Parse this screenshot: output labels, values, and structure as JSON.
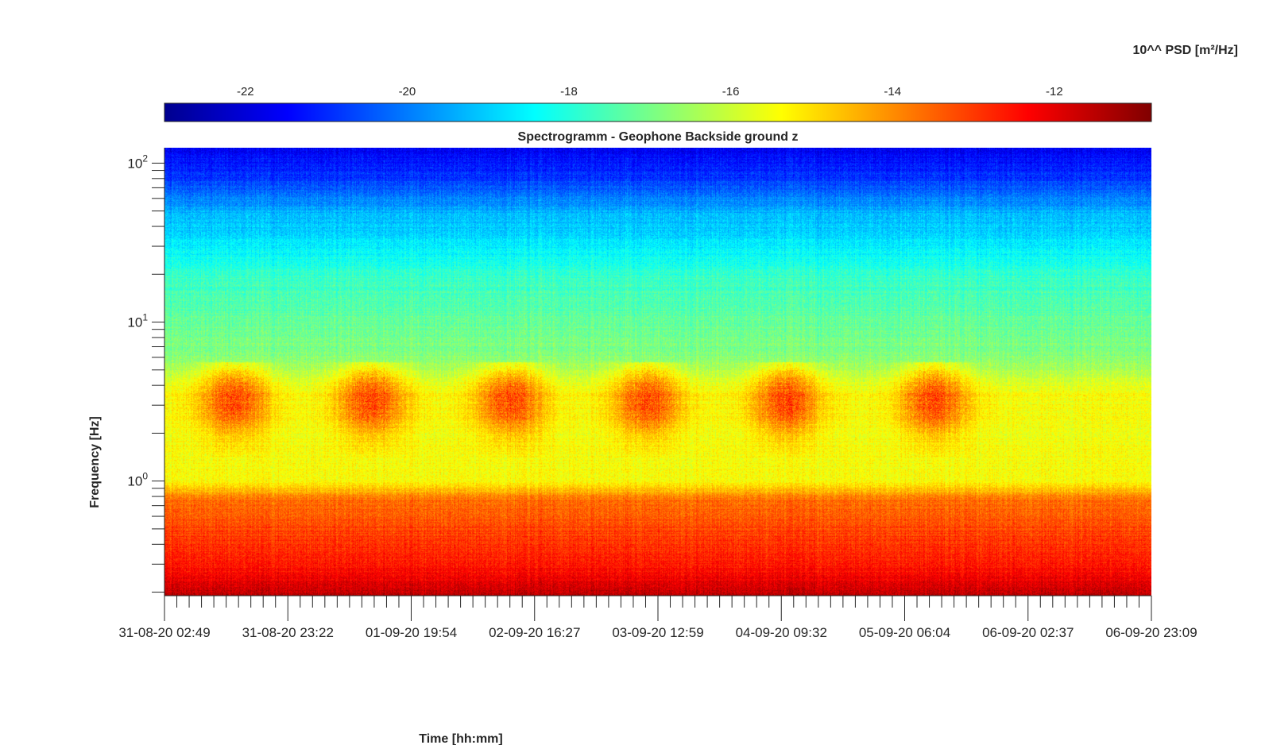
{
  "chart_data": {
    "type": "heatmap",
    "title": "Spectrogramm - Geophone Backside ground z",
    "xlabel": "Time [hh:mm]",
    "ylabel": "Frequency [Hz]",
    "colorbar": {
      "label": "10^^ PSD [m²/Hz]",
      "range": [
        -23.0,
        -10.8
      ],
      "ticks": [
        -22,
        -20,
        -18,
        -16,
        -14,
        -12
      ],
      "tick_labels": [
        "-22",
        "-20",
        "-18",
        "-16",
        "-14",
        "-12"
      ],
      "colormap": "jet",
      "placement": "top"
    },
    "x_ticks": [
      "31-08-20 02:49",
      "31-08-20 23:22",
      "01-09-20 19:54",
      "02-09-20 16:27",
      "03-09-20 12:59",
      "04-09-20 09:32",
      "05-09-20 06:04",
      "06-09-20 02:37",
      "06-09-20 23:09"
    ],
    "xlim": [
      "31-08-20 02:49",
      "06-09-20 23:09"
    ],
    "y_scale": "log",
    "y_ticks": [
      1,
      10,
      100
    ],
    "y_tick_labels": [
      {
        "base": "10",
        "exp": "0"
      },
      {
        "base": "10",
        "exp": "1"
      },
      {
        "base": "10",
        "exp": "2"
      }
    ],
    "ylim": [
      0.19,
      125
    ],
    "grid": false,
    "psd_profile_vs_frequency": [
      {
        "f": 0.19,
        "value": -11.4
      },
      {
        "f": 0.25,
        "value": -12.3
      },
      {
        "f": 0.4,
        "value": -12.9
      },
      {
        "f": 0.75,
        "value": -13.6
      },
      {
        "f": 1.0,
        "value": -15.4
      },
      {
        "f": 2.0,
        "value": -15.5
      },
      {
        "f": 3.5,
        "value": -15.4
      },
      {
        "f": 6.0,
        "value": -16.8
      },
      {
        "f": 10.0,
        "value": -17.2
      },
      {
        "f": 20.0,
        "value": -17.8
      },
      {
        "f": 30.0,
        "value": -18.6
      },
      {
        "f": 50.0,
        "value": -19.4
      },
      {
        "f": 80.0,
        "value": -20.8
      },
      {
        "f": 125.0,
        "value": -21.6
      }
    ],
    "daily_activity_bursts_x_fraction": [
      0.07,
      0.21,
      0.35,
      0.49,
      0.63,
      0.78
    ],
    "burst_frequency_band_hz": [
      2,
      5
    ],
    "burst_peak_value": -12.8
  }
}
